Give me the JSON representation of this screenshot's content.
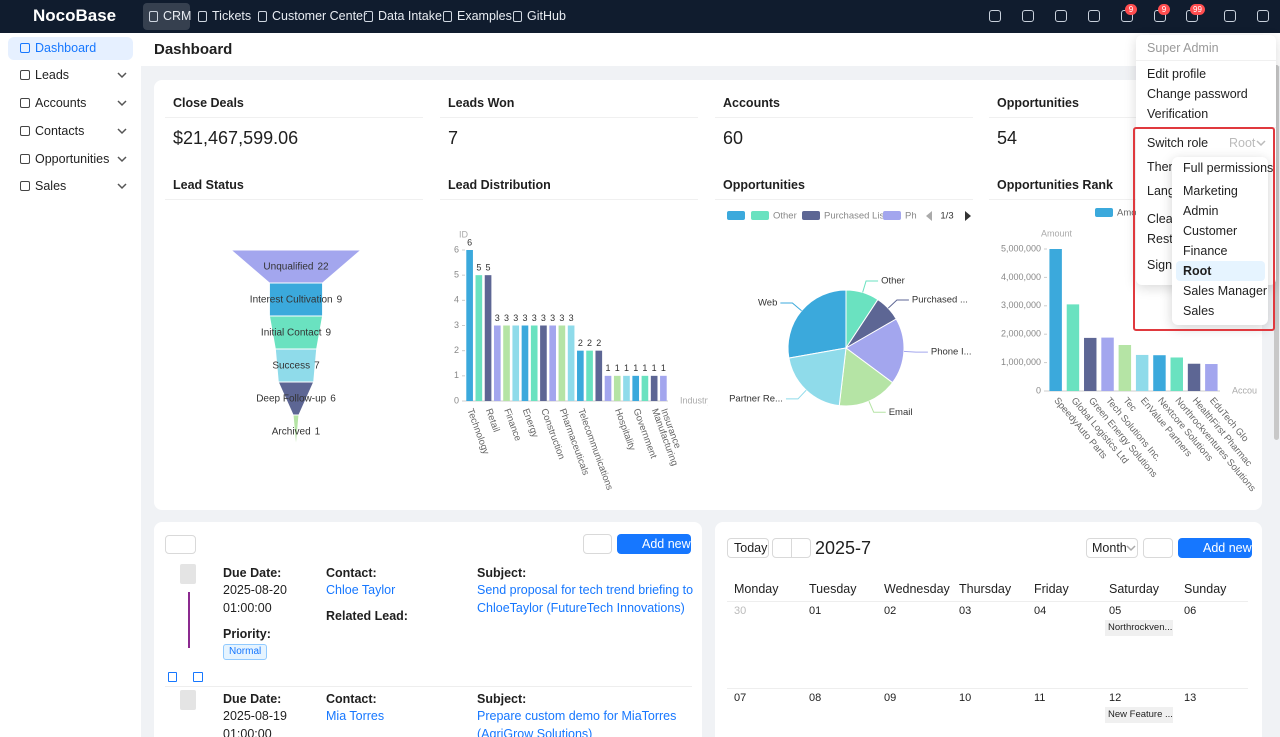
{
  "header": {
    "brand": "NocoBase",
    "nav": [
      "CRM",
      "Tickets",
      "Customer Center",
      "Data Intake",
      "Examples",
      "GitHub"
    ],
    "badges": [
      "9",
      "9",
      "99"
    ]
  },
  "sidebar": {
    "items": [
      "Dashboard",
      "Leads",
      "Accounts",
      "Contacts",
      "Opportunities",
      "Sales"
    ]
  },
  "page": {
    "title": "Dashboard"
  },
  "stats": [
    {
      "label": "Close Deals",
      "value": "$21,467,599.06"
    },
    {
      "label": "Leads Won",
      "value": "7"
    },
    {
      "label": "Accounts",
      "value": "60"
    },
    {
      "label": "Opportunities",
      "value": "54"
    }
  ],
  "charts": [
    {
      "type": "funnel",
      "title": "Lead Status",
      "categories": [
        "Unqualified",
        "Interest Cultivation",
        "Initial Contact",
        "Success",
        "Deep Follow-up",
        "Archived"
      ],
      "values": [
        22,
        9,
        9,
        7,
        6,
        1
      ],
      "colors": [
        "#a3a6ee",
        "#3ba9dc",
        "#6ae2c0",
        "#8fdbea",
        "#5d6694",
        "#b5e4a5"
      ]
    },
    {
      "type": "bar",
      "title": "Lead Distribution",
      "y_label": "ID",
      "x_label": "Industry",
      "categories": [
        "Technology",
        null,
        "Retail",
        null,
        "Finance",
        null,
        "Energy",
        null,
        "Construction",
        null,
        "Pharmaceuticals",
        null,
        "Telecommunications",
        null,
        null,
        null,
        "Hospitality",
        null,
        "Government",
        null,
        "Manufacturing",
        "Insurance"
      ],
      "values": [
        6,
        5,
        5,
        3,
        3,
        3,
        3,
        3,
        3,
        3,
        3,
        3,
        2,
        2,
        2,
        1,
        1,
        1,
        1,
        1,
        1,
        1
      ],
      "colors": [
        "#3ba9dc",
        "#6ae2c0",
        "#5d6694",
        "#a3a6ee",
        "#b5e4a5",
        "#8fdbea"
      ],
      "ylim": [
        0,
        6
      ],
      "yticks": [
        0,
        1,
        2,
        3,
        4,
        5,
        6
      ],
      "data_labels": true,
      "grid": false
    },
    {
      "type": "pie",
      "title": "Opportunities",
      "labels": [
        "Web",
        "Other",
        "Purchased ...",
        "Phone I...",
        "Email",
        "Partner Re..."
      ],
      "values": [
        15,
        5,
        4,
        10,
        9,
        11
      ],
      "legend": [
        "Other",
        "Purchased List",
        "Ph"
      ],
      "legend_page": "1/3",
      "colors": [
        "#3ba9dc",
        "#6ae2c0",
        "#5d6694",
        "#a3a6ee",
        "#b5e4a5",
        "#8fdbea"
      ]
    },
    {
      "type": "bar",
      "title": "Opportunities Rank",
      "y_label": "Amount",
      "x_label": "Account",
      "series_name": "Amount",
      "categories": [
        "SpeedyAuto Parts",
        "Global Logistics Ltd",
        "Green Energy Solutions",
        "Tech Solutions Inc.",
        "Tec",
        "EnValue Partners",
        "Nextcore Solutions",
        "Northrockventures Solutions",
        "HealthFirst Pharmac",
        "EduTech Glo"
      ],
      "values": [
        5000000,
        3050000,
        1870000,
        1880000,
        1620000,
        1270000,
        1260000,
        1180000,
        960000,
        950000
      ],
      "colors": [
        "#3ba9dc",
        "#6ae2c0",
        "#5d6694",
        "#a3a6ee",
        "#b5e4a5",
        "#8fdbea"
      ],
      "ylim": [
        0,
        5000000
      ],
      "yticks": [
        0,
        {
          "value": 1000000,
          "label": "1,000,000"
        },
        {
          "value": 2000000,
          "label": "2,000,000"
        },
        {
          "value": 3000000,
          "label": "3,000,000"
        },
        {
          "value": 4000000,
          "label": "4,000,000"
        },
        {
          "value": 5000000,
          "label": "5,000,000"
        }
      ],
      "data_labels": false,
      "grid": false
    }
  ],
  "tasks": {
    "add_button": "Add new",
    "labels": {
      "due_date": "Due Date:",
      "contact": "Contact:",
      "subject": "Subject:",
      "related_lead": "Related Lead:",
      "priority": "Priority:"
    },
    "items": [
      {
        "date": "2025-08-20",
        "time": "01:00:00",
        "contact": "Chloe Taylor",
        "subject": "Send proposal for tech trend briefing to ChloeTaylor (FutureTech Innovations)",
        "priority": "Normal"
      },
      {
        "date": "2025-08-19",
        "time": "01:00:00",
        "contact": "Mia Torres",
        "subject": "Prepare custom demo for MiaTorres (AgriGrow Solutions)"
      }
    ]
  },
  "calendar": {
    "today": "Today",
    "title": "2025-7",
    "view": "Month",
    "add_button": "Add new",
    "weekdays": [
      "Monday",
      "Tuesday",
      "Wednesday",
      "Thursday",
      "Friday",
      "Saturday",
      "Sunday"
    ],
    "weeks": [
      [
        {
          "day": "30",
          "other_month": true
        },
        {
          "day": "01"
        },
        {
          "day": "02"
        },
        {
          "day": "03"
        },
        {
          "day": "04"
        },
        {
          "day": "05",
          "events": [
            "Northrockven..."
          ]
        },
        {
          "day": "06"
        }
      ],
      [
        {
          "day": "07"
        },
        {
          "day": "08"
        },
        {
          "day": "09"
        },
        {
          "day": "10"
        },
        {
          "day": "11"
        },
        {
          "day": "12",
          "events": [
            "New Feature ..."
          ]
        },
        {
          "day": "13"
        }
      ]
    ]
  },
  "user_menu": {
    "name": "Super Admin",
    "items": [
      "Edit profile",
      "Change password",
      "Verification"
    ],
    "switch_role": "Switch role",
    "current_role": "Root",
    "more": [
      "Theme",
      "Language",
      "Clear cache",
      "Restart application",
      "Sign out"
    ],
    "roles": [
      "Full permissions",
      "Marketing",
      "Admin",
      "Customer",
      "Finance",
      "Root",
      "Sales Manager",
      "Sales"
    ]
  }
}
